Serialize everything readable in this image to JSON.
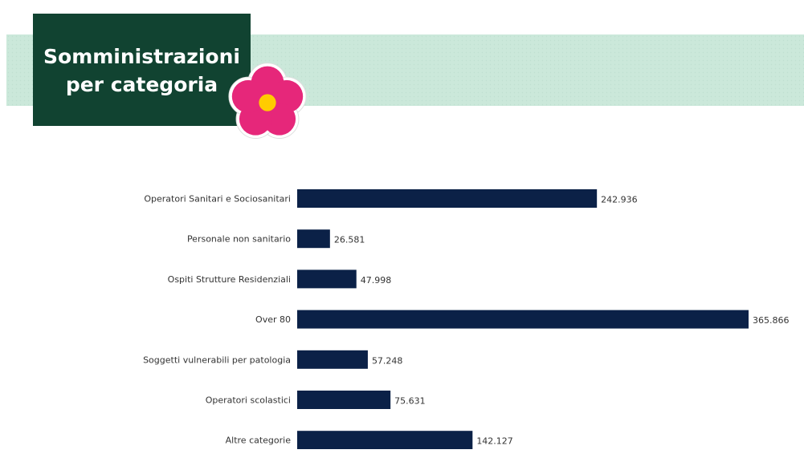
{
  "header": {
    "title": "Somministrazioni\nper categoria",
    "band_color": "#cde9dc",
    "title_bg_color": "#114331",
    "flower_icon": "primrose-flower-icon",
    "flower_color": "#e6277a",
    "flower_center_color": "#ffcc00"
  },
  "chart_data": {
    "type": "bar",
    "orientation": "horizontal",
    "categories": [
      "Operatori Sanitari e Sociosanitari",
      "Personale non sanitario",
      "Ospiti Strutture Residenziali",
      "Over 80",
      "Soggetti vulnerabili per patologia",
      "Operatori scolastici",
      "Altre categorie"
    ],
    "values": [
      242936,
      26581,
      47998,
      365866,
      57248,
      75631,
      142127
    ],
    "value_labels": [
      "242.936",
      "26.581",
      "47.998",
      "365.866",
      "57.248",
      "75.631",
      "142.127"
    ],
    "bar_color": "#0b2147",
    "xlim": [
      0,
      365866
    ],
    "grid": false,
    "legend": "none",
    "title": "",
    "xlabel": "",
    "ylabel": ""
  }
}
